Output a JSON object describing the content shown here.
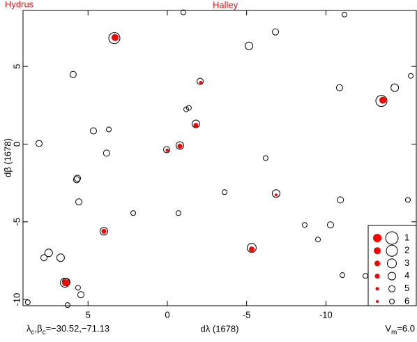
{
  "chart_data": {
    "type": "scatter",
    "annotations": [
      "Hydrus",
      "Halley"
    ],
    "xlabel": "dλ (1678)",
    "ylabel": "dβ (1678)",
    "footer_left": [
      "λ",
      "c",
      ",β",
      "c",
      "=−30.52,−71.13"
    ],
    "footer_right": [
      "V",
      "m",
      "=6.0"
    ],
    "xlim": [
      9.1,
      -15.7
    ],
    "ylim": [
      -10.4,
      8.6
    ],
    "xticks": [
      5,
      0,
      -5,
      -10
    ],
    "yticks": [
      5,
      0,
      -5,
      -10
    ],
    "legend": "lower right",
    "legend_magnitudes": [
      1,
      2,
      3,
      4,
      5,
      6
    ],
    "series": [
      {
        "color": "#000000",
        "filled": false,
        "x": [
          -1.01,
          3.34,
          -6.82,
          -11.17,
          -5.15,
          5.94,
          -2.07,
          -10.86,
          -14.34,
          -15.35,
          -13.5,
          -1.19,
          -1.36,
          -1.8,
          4.66,
          3.69,
          8.09,
          0.04,
          -0.79,
          3.83,
          -6.2,
          5.67,
          5.72,
          5.58,
          -3.61,
          -6.86,
          2.15,
          -0.7,
          -10.91,
          4.0,
          -8.66,
          -10.29,
          -9.5,
          -5.32,
          7.48,
          7.78,
          6.73,
          -11.04,
          -12.49,
          -15.17,
          6.38,
          6.46,
          5.63,
          5.45,
          8.8,
          6.29
        ],
        "y": [
          8.48,
          6.82,
          7.22,
          8.34,
          6.32,
          4.48,
          4.04,
          3.63,
          3.63,
          4.39,
          2.78,
          2.24,
          2.33,
          1.3,
          0.85,
          0.94,
          0.04,
          -0.36,
          -0.09,
          -0.58,
          -0.9,
          -2.2,
          -2.29,
          -3.72,
          -3.09,
          -3.18,
          -4.44,
          -4.44,
          -3.59,
          -5.61,
          -5.2,
          -5.2,
          -6.14,
          -6.68,
          -7.0,
          -7.31,
          -7.31,
          -8.43,
          -8.48,
          -3.59,
          -8.88,
          -8.92,
          -9.24,
          -9.69,
          -10.18,
          -10.36
        ],
        "mag": [
          6,
          2,
          5,
          6,
          4,
          5,
          5,
          5,
          4,
          6,
          2,
          6,
          6,
          4,
          5,
          6,
          5,
          5,
          4,
          5,
          6,
          5,
          5,
          5,
          6,
          4,
          6,
          6,
          5,
          4,
          6,
          5,
          6,
          3,
          4,
          5,
          4,
          6,
          6,
          6,
          4,
          3,
          6,
          5,
          6,
          6
        ]
      },
      {
        "color": "#ff0000",
        "filled": true,
        "x": [
          3.3,
          -2.11,
          -13.59,
          -1.8,
          0,
          -0.79,
          -6.86,
          4.0,
          -5.32,
          6.42
        ],
        "y": [
          6.86,
          3.95,
          2.83,
          1.21,
          -0.4,
          -0.13,
          -3.27,
          -5.61,
          -6.77,
          -8.92
        ],
        "mag": [
          2,
          5,
          2,
          4,
          5,
          4,
          6,
          4,
          3,
          2
        ]
      }
    ]
  }
}
